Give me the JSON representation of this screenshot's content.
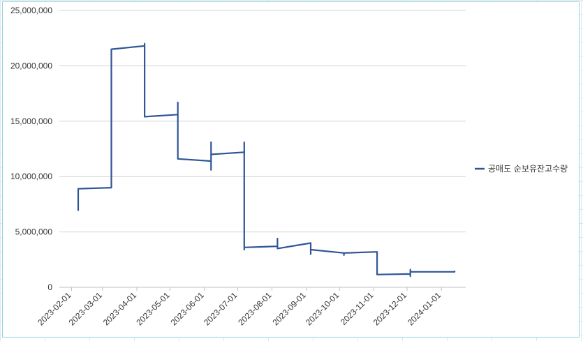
{
  "chart_data": {
    "type": "line",
    "title": "",
    "xlabel": "",
    "ylabel": "",
    "ylim": [
      0,
      25000000
    ],
    "yticks": [
      0,
      5000000,
      10000000,
      15000000,
      20000000,
      25000000
    ],
    "ytick_labels": [
      "0",
      "5,000,000",
      "10,000,000",
      "15,000,000",
      "20,000,000",
      "25,000,000"
    ],
    "xlim": [
      "2023-01-21",
      "2024-01-23"
    ],
    "xtick_labels": [
      "2023-02-01",
      "2023-03-01",
      "2023-04-01",
      "2023-05-01",
      "2023-06-01",
      "2023-07-01",
      "2023-08-01",
      "2023-09-01",
      "2023-10-01",
      "2023-11-01",
      "2023-12-01",
      "2024-01-01"
    ],
    "grid": "horizontal",
    "legend_position": "right",
    "series": [
      {
        "name": "공매도 순보유잔고수량",
        "color": "#2f5597",
        "points": [
          [
            "2023-02-07",
            6900000
          ],
          [
            "2023-02-07",
            8900000
          ],
          [
            "2023-03-09",
            9000000
          ],
          [
            "2023-03-09",
            21500000
          ],
          [
            "2023-04-08",
            21800000
          ],
          [
            "2023-04-08",
            22000000
          ],
          [
            "2023-04-08",
            15400000
          ],
          [
            "2023-05-08",
            15600000
          ],
          [
            "2023-05-08",
            16700000
          ],
          [
            "2023-05-08",
            11600000
          ],
          [
            "2023-06-07",
            11400000
          ],
          [
            "2023-06-07",
            13100000
          ],
          [
            "2023-06-07",
            10600000
          ],
          [
            "2023-06-07",
            12000000
          ],
          [
            "2023-07-07",
            12200000
          ],
          [
            "2023-07-07",
            13100000
          ],
          [
            "2023-07-07",
            3400000
          ],
          [
            "2023-07-07",
            3600000
          ],
          [
            "2023-08-06",
            3700000
          ],
          [
            "2023-08-06",
            4400000
          ],
          [
            "2023-08-06",
            3500000
          ],
          [
            "2023-09-05",
            4000000
          ],
          [
            "2023-09-05",
            3000000
          ],
          [
            "2023-09-05",
            3400000
          ],
          [
            "2023-10-05",
            3100000
          ],
          [
            "2023-10-05",
            2900000
          ],
          [
            "2023-10-05",
            3100000
          ],
          [
            "2023-11-04",
            3200000
          ],
          [
            "2023-11-04",
            1150000
          ],
          [
            "2023-12-04",
            1200000
          ],
          [
            "2023-12-04",
            1600000
          ],
          [
            "2023-12-04",
            1000000
          ],
          [
            "2023-12-04",
            1400000
          ],
          [
            "2024-01-13",
            1400000
          ],
          [
            "2024-01-13",
            1500000
          ]
        ]
      }
    ]
  }
}
